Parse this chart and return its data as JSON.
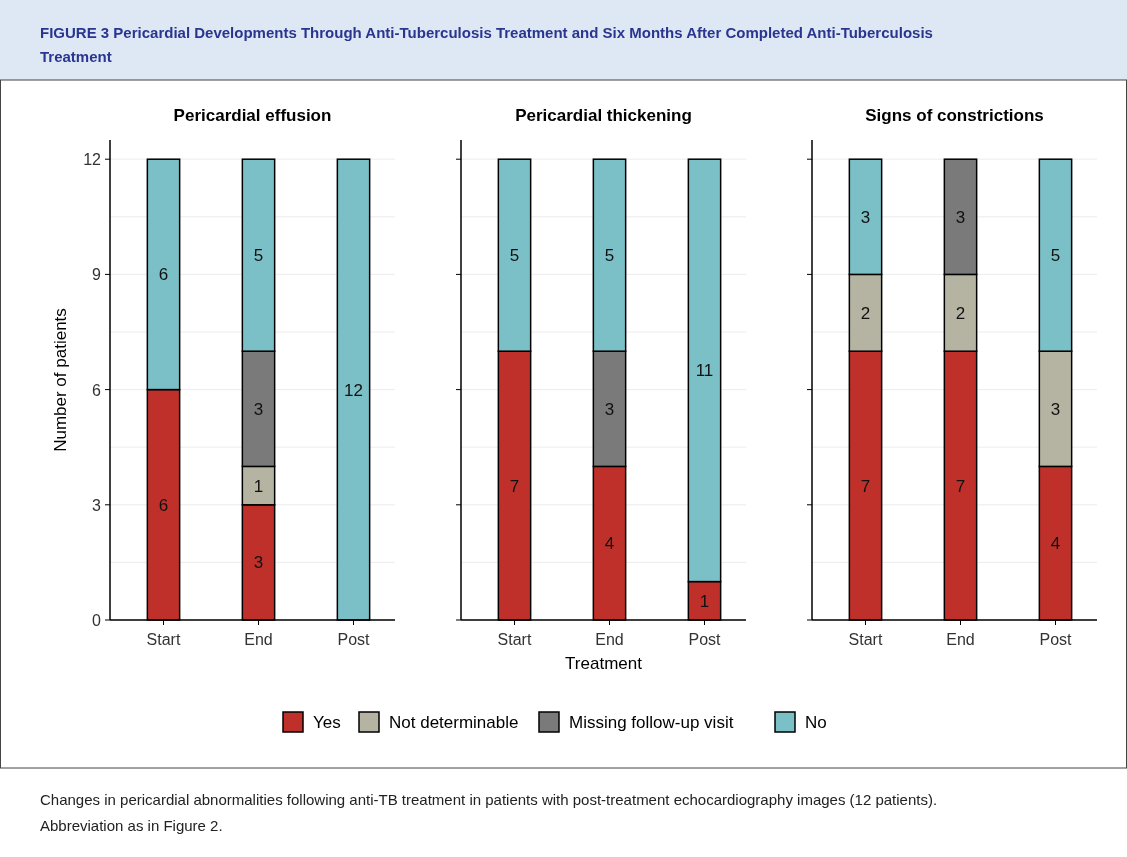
{
  "chart_data": [
    {
      "type": "bar",
      "stacked": true,
      "title": "Pericardial effusion",
      "ylabel": "Number of patients",
      "categories": [
        "Start",
        "End",
        "Post"
      ],
      "ylim": [
        0,
        12.5
      ],
      "yticks": [
        0,
        3,
        6,
        9,
        12
      ],
      "grid": "y",
      "series": [
        {
          "color": "#c0302b",
          "values": [
            6,
            3,
            0
          ],
          "value_labels": [
            "6",
            "3",
            null
          ]
        },
        {
          "color": "#b5b3a2",
          "values": [
            0,
            1,
            0
          ],
          "value_labels": [
            null,
            "1",
            null
          ]
        },
        {
          "color": "#7a7a7a",
          "values": [
            0,
            3,
            0
          ],
          "value_labels": [
            null,
            "3",
            null
          ]
        },
        {
          "color": "#7bbfc7",
          "values": [
            6,
            5,
            12
          ],
          "value_labels": [
            "6",
            "5",
            "12"
          ]
        }
      ],
      "annotations": [
        "FIGURE 3 Pericardial Developments Through Anti-Tuberculosis Treatment and Six Months After Completed Anti-Tuberculosis Treatment",
        "Changes in pericardial abnormalities following anti-TB treatment in patients with post-treatment echocardiography images (12 patients). Abbreviation as in Figure 2."
      ]
    },
    {
      "type": "bar",
      "stacked": true,
      "title": "Pericardial thickening",
      "xlabel": "Treatment",
      "categories": [
        "Start",
        "End",
        "Post"
      ],
      "ylim": [
        0,
        12.5
      ],
      "yticks": [
        0,
        3,
        6,
        9,
        12
      ],
      "grid": "y",
      "tick_labels": "x",
      "legend": "bottom",
      "series": [
        {
          "name": "Yes",
          "color": "#c0302b",
          "values": [
            7,
            4,
            1
          ],
          "value_labels": [
            "7",
            "4",
            "1"
          ]
        },
        {
          "name": "Not determinable",
          "color": "#b5b3a2",
          "values": [
            0,
            0,
            0
          ],
          "value_labels": [
            null,
            null,
            null
          ]
        },
        {
          "name": "Missing follow-up visit",
          "color": "#7a7a7a",
          "values": [
            0,
            3,
            0
          ],
          "value_labels": [
            null,
            "3",
            null
          ]
        },
        {
          "name": "No",
          "color": "#7bbfc7",
          "values": [
            5,
            5,
            11
          ],
          "value_labels": [
            "5",
            "5",
            "11"
          ]
        }
      ]
    },
    {
      "type": "bar",
      "stacked": true,
      "title": "Signs of constrictions",
      "categories": [
        "Start",
        "End",
        "Post"
      ],
      "ylim": [
        0,
        12.5
      ],
      "yticks": [
        0,
        3,
        6,
        9,
        12
      ],
      "grid": "y",
      "tick_labels": "x",
      "series": [
        {
          "color": "#c0302b",
          "values": [
            7,
            7,
            4
          ],
          "value_labels": [
            "7",
            "7",
            "4"
          ]
        },
        {
          "color": "#b5b3a2",
          "values": [
            2,
            2,
            3
          ],
          "value_labels": [
            "2",
            "2",
            "3"
          ]
        },
        {
          "color": "#7a7a7a",
          "values": [
            0,
            3,
            0
          ],
          "value_labels": [
            null,
            "3",
            null
          ]
        },
        {
          "color": "#7bbfc7",
          "values": [
            3,
            0,
            5
          ],
          "value_labels": [
            "3",
            null,
            "5"
          ]
        }
      ]
    }
  ]
}
